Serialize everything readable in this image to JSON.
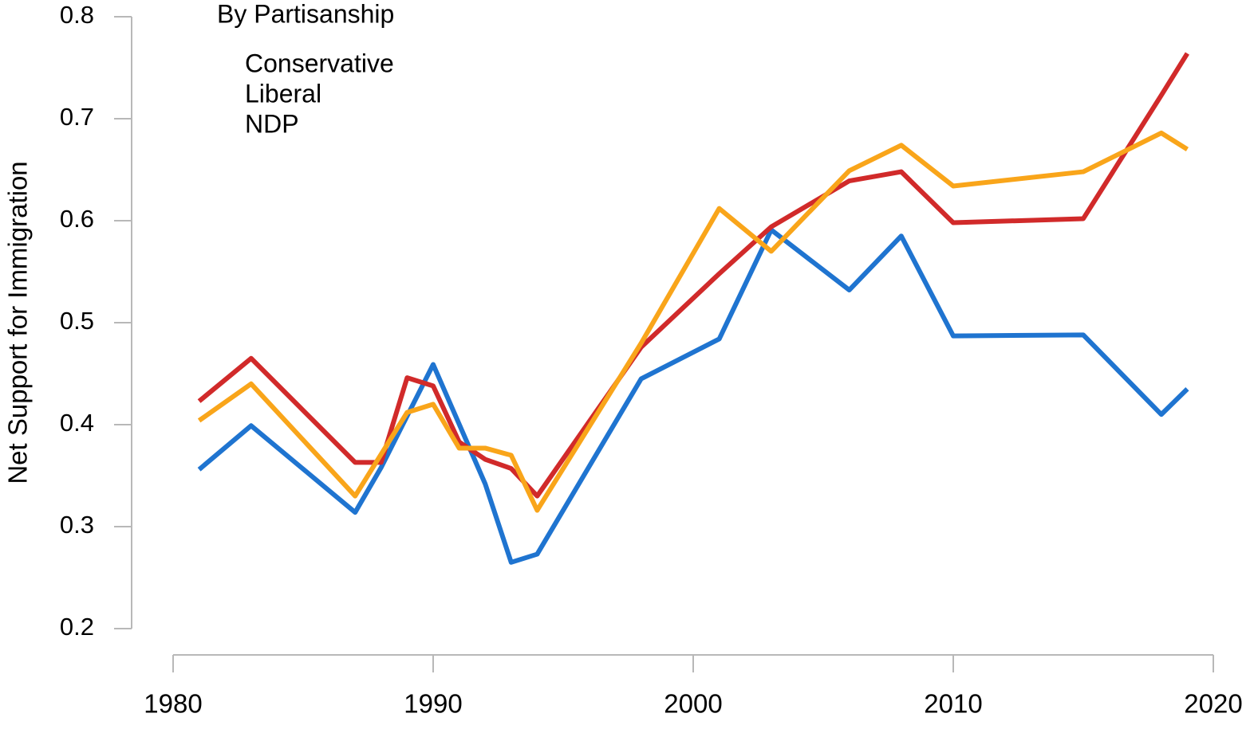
{
  "chart_data": {
    "type": "line",
    "y_label": "Net Support for Immigration",
    "legend_title": "By Partisanship",
    "xlim": [
      1980,
      2020
    ],
    "xticks": [
      1980,
      1990,
      2000,
      2010,
      2020
    ],
    "ylim": [
      0.2,
      0.8
    ],
    "yticks": [
      0.2,
      0.3,
      0.4,
      0.5,
      0.6,
      0.7,
      0.8
    ],
    "legend": "top-left",
    "series": [
      {
        "name": "Conservative",
        "color": "#1f74d0",
        "x": [
          1981,
          1983,
          1987,
          1988,
          1990,
          1992,
          1993,
          1994,
          1998,
          2001,
          2003,
          2006,
          2008,
          2010,
          2015,
          2018,
          2019
        ],
        "values": [
          0.356,
          0.399,
          0.314,
          0.358,
          0.459,
          0.342,
          0.265,
          0.273,
          0.445,
          0.484,
          0.591,
          0.532,
          0.585,
          0.487,
          0.488,
          0.41,
          0.435
        ]
      },
      {
        "name": "Liberal",
        "color": "#d12a2a",
        "x": [
          1981,
          1983,
          1987,
          1988,
          1989,
          1990,
          1991,
          1992,
          1993,
          1994,
          1998,
          2001,
          2003,
          2006,
          2008,
          2010,
          2015,
          2018,
          2019
        ],
        "values": [
          0.423,
          0.465,
          0.363,
          0.363,
          0.446,
          0.438,
          0.383,
          0.366,
          0.357,
          0.33,
          0.476,
          0.548,
          0.594,
          0.639,
          0.648,
          0.598,
          0.602,
          0.723,
          0.764
        ]
      },
      {
        "name": "NDP",
        "color": "#f9a51a",
        "x": [
          1981,
          1983,
          1987,
          1989,
          1990,
          1991,
          1992,
          1993,
          1994,
          1998,
          2001,
          2003,
          2006,
          2008,
          2010,
          2015,
          2018,
          2019
        ],
        "values": [
          0.404,
          0.44,
          0.33,
          0.412,
          0.42,
          0.377,
          0.377,
          0.37,
          0.316,
          0.48,
          0.612,
          0.57,
          0.649,
          0.674,
          0.634,
          0.648,
          0.686,
          0.67
        ]
      }
    ]
  }
}
